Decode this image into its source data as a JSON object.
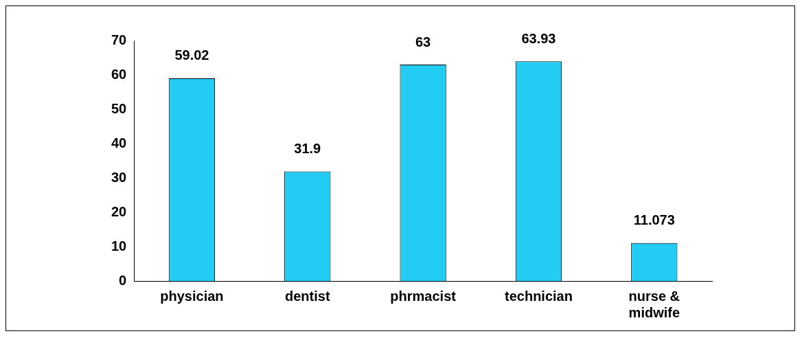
{
  "chart_data": {
    "type": "bar",
    "categories": [
      "physician",
      "dentist",
      "phrmacist",
      "technician",
      "nurse & midwife"
    ],
    "values": [
      59.02,
      31.9,
      63,
      63.93,
      11.073
    ],
    "color": "#22ccf2",
    "ylim": [
      0,
      70
    ],
    "yticks": [
      0,
      10,
      20,
      30,
      40,
      50,
      60,
      70
    ],
    "grid": false,
    "legend": false,
    "data_labels": true
  }
}
